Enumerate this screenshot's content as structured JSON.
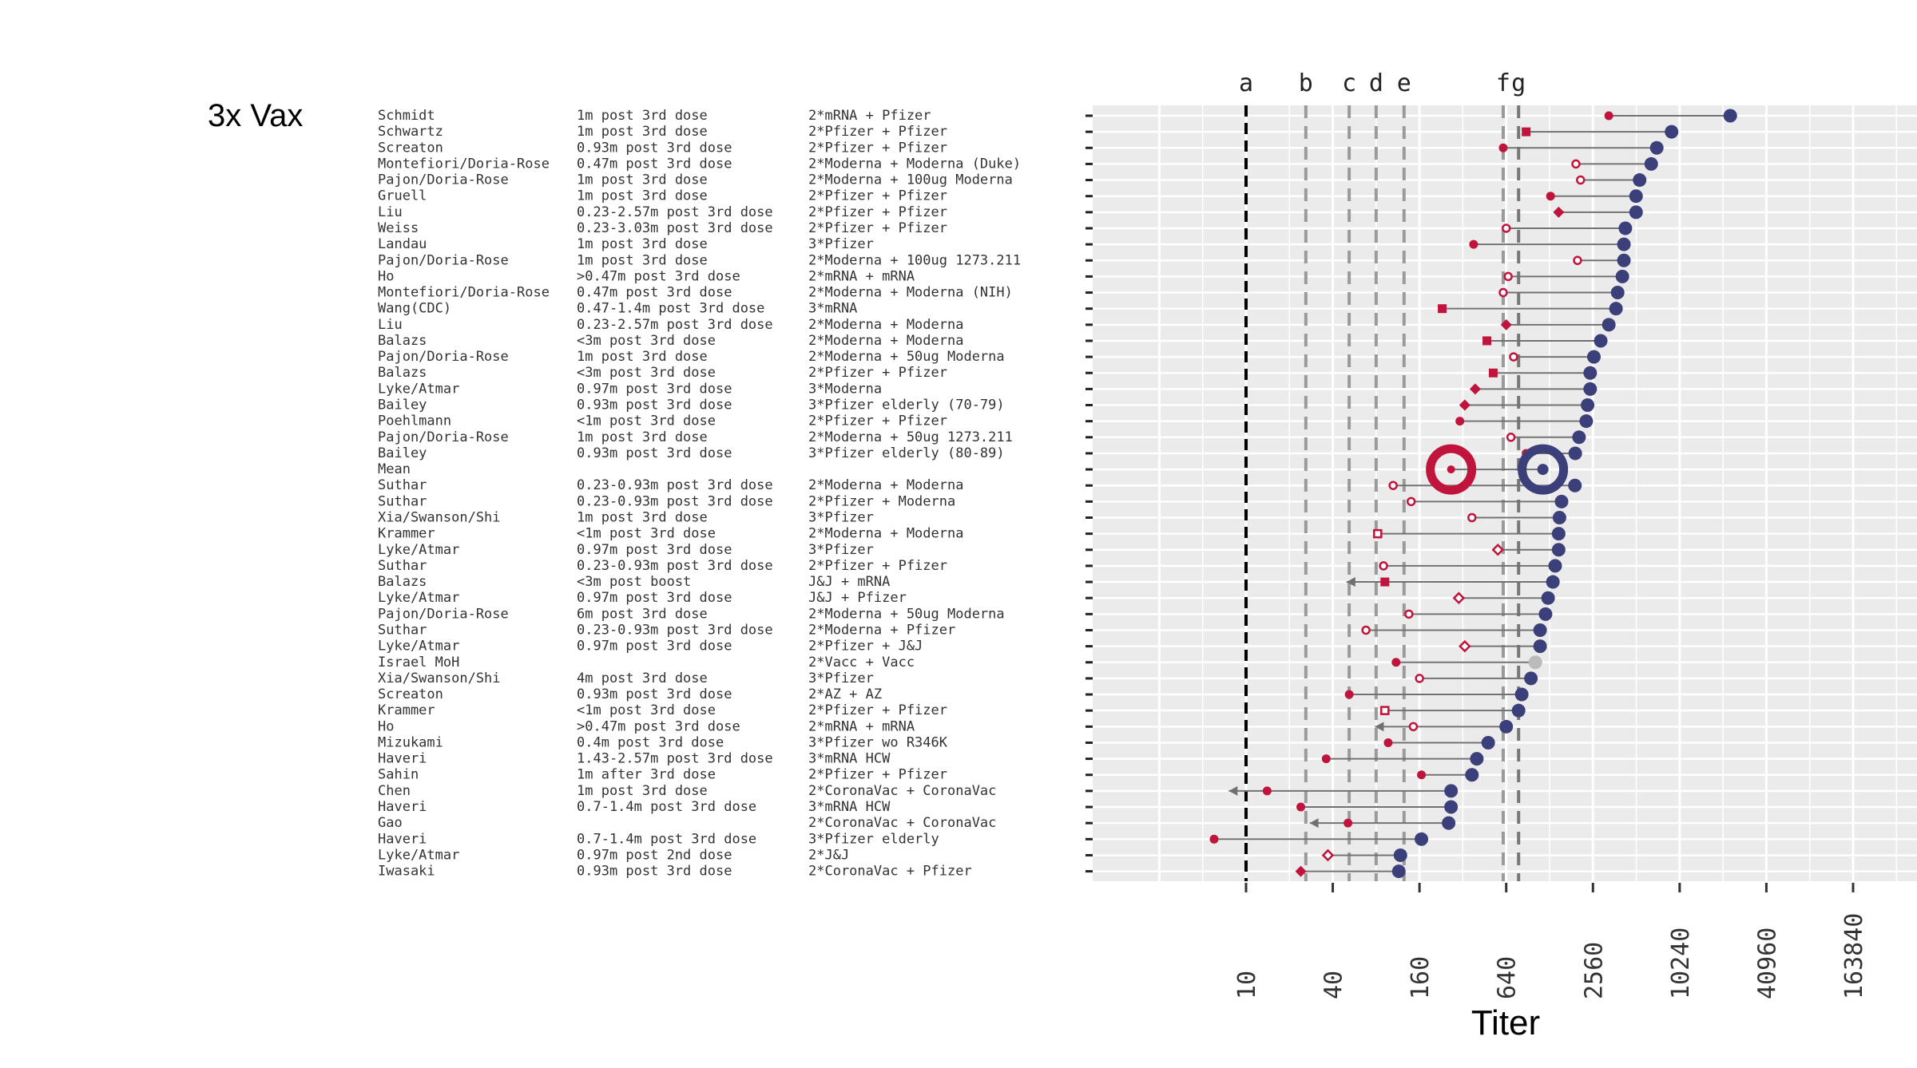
{
  "panel_title": "3x Vax",
  "colors": {
    "red": "#c0143c",
    "blue": "#3b3f7a",
    "gray_point": "#bbbbbb",
    "panel_bg": "#ebebeb",
    "gridline": "#ffffff",
    "segment": "#707070"
  },
  "chart_data": {
    "type": "dumbbell",
    "xlabel": "Titer",
    "x_scale": "log2",
    "xlim": [
      1.7,
      300000
    ],
    "x_ticks": [
      "10",
      "40",
      "160",
      "640",
      "2560",
      "10240",
      "40960",
      "163840"
    ],
    "x_tick_values": [
      10,
      40,
      160,
      640,
      2560,
      10240,
      40960,
      163840
    ],
    "reference_lines": [
      {
        "label": "a",
        "x": 10,
        "style": "black"
      },
      {
        "label": "b",
        "x": 26,
        "style": "gray"
      },
      {
        "label": "c",
        "x": 52,
        "style": "gray"
      },
      {
        "label": "d",
        "x": 80,
        "style": "gray"
      },
      {
        "label": "e",
        "x": 125,
        "style": "gray"
      },
      {
        "label": "f",
        "x": 610,
        "style": "gray"
      },
      {
        "label": "g",
        "x": 780,
        "style": "darkgray"
      }
    ],
    "rows": [
      {
        "author": "Schmidt",
        "time": "1m post 3rd dose",
        "vaccine": "2*mRNA + Pfizer",
        "blue": 23000,
        "red": 3300,
        "red_shape": "dot"
      },
      {
        "author": "Schwartz",
        "time": "1m post 3rd dose",
        "vaccine": "2*Pfizer + Pfizer",
        "blue": 9000,
        "red": 880,
        "red_shape": "square"
      },
      {
        "author": "Screaton",
        "time": "0.93m post 3rd dose",
        "vaccine": "2*Pfizer + Pfizer",
        "blue": 7100,
        "red": 610,
        "red_shape": "dot"
      },
      {
        "author": "Montefiori/Doria-Rose",
        "time": "0.47m post 3rd dose",
        "vaccine": "2*Moderna + Moderna (Duke)",
        "blue": 6500,
        "red": 1950,
        "red_shape": "circle"
      },
      {
        "author": "Pajon/Doria-Rose",
        "time": "1m post 3rd dose",
        "vaccine": "2*Moderna + 100ug Moderna",
        "blue": 5400,
        "red": 2100,
        "red_shape": "circle"
      },
      {
        "author": "Gruell",
        "time": "1m post 3rd dose",
        "vaccine": "2*Pfizer + Pfizer",
        "blue": 5100,
        "red": 1300,
        "red_shape": "dot"
      },
      {
        "author": "Liu",
        "time": "0.23-2.57m post 3rd dose",
        "vaccine": "2*Pfizer + Pfizer",
        "blue": 5100,
        "red": 1480,
        "red_shape": "diamond"
      },
      {
        "author": "Weiss",
        "time": "0.23-3.03m post 3rd dose",
        "vaccine": "2*Pfizer + Pfizer",
        "blue": 4300,
        "red": 640,
        "red_shape": "circle"
      },
      {
        "author": "Landau",
        "time": "1m post 3rd dose",
        "vaccine": "3*Pfizer",
        "blue": 4200,
        "red": 380,
        "red_shape": "dot"
      },
      {
        "author": "Pajon/Doria-Rose",
        "time": "1m post 3rd dose",
        "vaccine": "2*Moderna + 100ug 1273.211",
        "blue": 4200,
        "red": 2000,
        "red_shape": "circle"
      },
      {
        "author": "Ho",
        "time": ">0.47m post 3rd dose",
        "vaccine": "2*mRNA + mRNA",
        "blue": 4100,
        "red": 660,
        "red_shape": "circle"
      },
      {
        "author": "Montefiori/Doria-Rose",
        "time": "0.47m post 3rd dose",
        "vaccine": "2*Moderna + Moderna (NIH)",
        "blue": 3800,
        "red": 610,
        "red_shape": "circle"
      },
      {
        "author": "Wang(CDC)",
        "time": "0.47-1.4m post 3rd dose",
        "vaccine": "3*mRNA",
        "blue": 3700,
        "red": 230,
        "red_shape": "square"
      },
      {
        "author": "Liu",
        "time": "0.23-2.57m post 3rd dose",
        "vaccine": "2*Moderna + Moderna",
        "blue": 3300,
        "red": 640,
        "red_shape": "diamond"
      },
      {
        "author": "Balazs",
        "time": "<3m post 3rd dose",
        "vaccine": "2*Moderna + Moderna",
        "blue": 2900,
        "red": 470,
        "red_shape": "square"
      },
      {
        "author": "Pajon/Doria-Rose",
        "time": "1m post 3rd dose",
        "vaccine": "2*Moderna + 50ug Moderna",
        "blue": 2600,
        "red": 720,
        "red_shape": "circle"
      },
      {
        "author": "Balazs",
        "time": "<3m post 3rd dose",
        "vaccine": "2*Pfizer + Pfizer",
        "blue": 2450,
        "red": 520,
        "red_shape": "square"
      },
      {
        "author": "Lyke/Atmar",
        "time": "0.97m post 3rd dose",
        "vaccine": "3*Moderna",
        "blue": 2450,
        "red": 390,
        "red_shape": "diamond"
      },
      {
        "author": "Bailey",
        "time": "0.93m post 3rd dose",
        "vaccine": "3*Pfizer elderly (70-79)",
        "blue": 2350,
        "red": 330,
        "red_shape": "diamond"
      },
      {
        "author": "Poehlmann",
        "time": "<1m post 3rd dose",
        "vaccine": "2*Pfizer + Pfizer",
        "blue": 2300,
        "red": 305,
        "red_shape": "dot"
      },
      {
        "author": "Pajon/Doria-Rose",
        "time": "1m post 3rd dose",
        "vaccine": "2*Moderna + 50ug 1273.211",
        "blue": 2050,
        "red": 690,
        "red_shape": "circle"
      },
      {
        "author": "Bailey",
        "time": "0.93m post 3rd dose",
        "vaccine": "3*Pfizer elderly (80-89)",
        "blue": 1930,
        "red": 880,
        "red_shape": "dot"
      },
      {
        "author": "Mean",
        "time": "",
        "vaccine": "",
        "blue": 1150,
        "red": 265,
        "red_shape": "mean",
        "is_mean": true
      },
      {
        "author": "Suthar",
        "time": "0.23-0.93m post 3rd dose",
        "vaccine": "2*Moderna + Moderna",
        "blue": 1920,
        "red": 105,
        "red_shape": "circle"
      },
      {
        "author": "Suthar",
        "time": "0.23-0.93m post 3rd dose",
        "vaccine": "2*Pfizer + Moderna",
        "blue": 1550,
        "red": 140,
        "red_shape": "circle"
      },
      {
        "author": "Xia/Swanson/Shi",
        "time": "1m post 3rd dose",
        "vaccine": "3*Pfizer",
        "blue": 1500,
        "red": 370,
        "red_shape": "circle"
      },
      {
        "author": "Krammer",
        "time": "<1m post 3rd dose",
        "vaccine": "2*Moderna + Moderna",
        "blue": 1480,
        "red": 82,
        "red_shape": "square_open"
      },
      {
        "author": "Lyke/Atmar",
        "time": "0.97m post 3rd dose",
        "vaccine": "3*Pfizer",
        "blue": 1480,
        "red": 560,
        "red_shape": "diamond_open"
      },
      {
        "author": "Suthar",
        "time": "0.23-0.93m post 3rd dose",
        "vaccine": "2*Pfizer + Pfizer",
        "blue": 1400,
        "red": 90,
        "red_shape": "circle"
      },
      {
        "author": "Balazs",
        "time": "<3m post boost",
        "vaccine": "J&J + mRNA",
        "blue": 1350,
        "red": 92,
        "red_shape": "square",
        "below_lod": true
      },
      {
        "author": "Lyke/Atmar",
        "time": "0.97m post 3rd dose",
        "vaccine": "J&J + Pfizer",
        "blue": 1250,
        "red": 300,
        "red_shape": "diamond_open"
      },
      {
        "author": "Pajon/Doria-Rose",
        "time": "6m post 3rd dose",
        "vaccine": "2*Moderna + 50ug Moderna",
        "blue": 1200,
        "red": 135,
        "red_shape": "circle"
      },
      {
        "author": "Suthar",
        "time": "0.23-0.93m post 3rd dose",
        "vaccine": "2*Moderna + Pfizer",
        "blue": 1100,
        "red": 68,
        "red_shape": "circle"
      },
      {
        "author": "Lyke/Atmar",
        "time": "0.97m post 3rd dose",
        "vaccine": "2*Pfizer + J&J",
        "blue": 1100,
        "red": 330,
        "red_shape": "diamond_open"
      },
      {
        "author": "Israel MoH",
        "time": "",
        "vaccine": "2*Vacc + Vacc",
        "blue": 1020,
        "red": 110,
        "red_shape": "dot",
        "blue_color": "gray"
      },
      {
        "author": "Xia/Swanson/Shi",
        "time": "4m post 3rd dose",
        "vaccine": "3*Pfizer",
        "blue": 950,
        "red": 160,
        "red_shape": "circle"
      },
      {
        "author": "Screaton",
        "time": "0.93m post 3rd dose",
        "vaccine": "2*AZ + AZ",
        "blue": 820,
        "red": 52,
        "red_shape": "dot"
      },
      {
        "author": "Krammer",
        "time": "<1m post 3rd dose",
        "vaccine": "2*Pfizer + Pfizer",
        "blue": 780,
        "red": 92,
        "red_shape": "square_open"
      },
      {
        "author": "Ho",
        "time": ">0.47m post 3rd dose",
        "vaccine": "2*mRNA + mRNA",
        "blue": 640,
        "red": 145,
        "red_shape": "circle",
        "below_lod": true
      },
      {
        "author": "Mizukami",
        "time": "0.4m post 3rd dose",
        "vaccine": "3*Pfizer wo R346K",
        "blue": 480,
        "red": 97,
        "red_shape": "dot"
      },
      {
        "author": "Haveri",
        "time": "1.43-2.57m post 3rd dose",
        "vaccine": "3*mRNA HCW",
        "blue": 400,
        "red": 36,
        "red_shape": "dot"
      },
      {
        "author": "Sahin",
        "time": "1m after 3rd dose",
        "vaccine": "2*Pfizer + Pfizer",
        "blue": 370,
        "red": 165,
        "red_shape": "dot"
      },
      {
        "author": "Chen",
        "time": "1m post 3rd dose",
        "vaccine": "2*CoronaVac + CoronaVac",
        "blue": 265,
        "red": 14,
        "red_shape": "dot",
        "below_lod": true
      },
      {
        "author": "Haveri",
        "time": "0.7-1.4m post 3rd dose",
        "vaccine": "3*mRNA HCW",
        "blue": 265,
        "red": 24,
        "red_shape": "dot"
      },
      {
        "author": "Gao",
        "time": "",
        "vaccine": "2*CoronaVac + CoronaVac",
        "blue": 255,
        "red": 51,
        "red_shape": "dot",
        "below_lod": true
      },
      {
        "author": "Haveri",
        "time": "0.7-1.4m post 3rd dose",
        "vaccine": "3*Pfizer elderly",
        "blue": 165,
        "red": 6,
        "red_shape": "dot"
      },
      {
        "author": "Lyke/Atmar",
        "time": "0.97m post 2nd dose",
        "vaccine": "2*J&J",
        "blue": 118,
        "red": 37,
        "red_shape": "diamond_open"
      },
      {
        "author": "Iwasaki",
        "time": "0.93m post 3rd dose",
        "vaccine": "2*CoronaVac +  Pfizer",
        "blue": 115,
        "red": 24,
        "red_shape": "diamond"
      }
    ]
  }
}
